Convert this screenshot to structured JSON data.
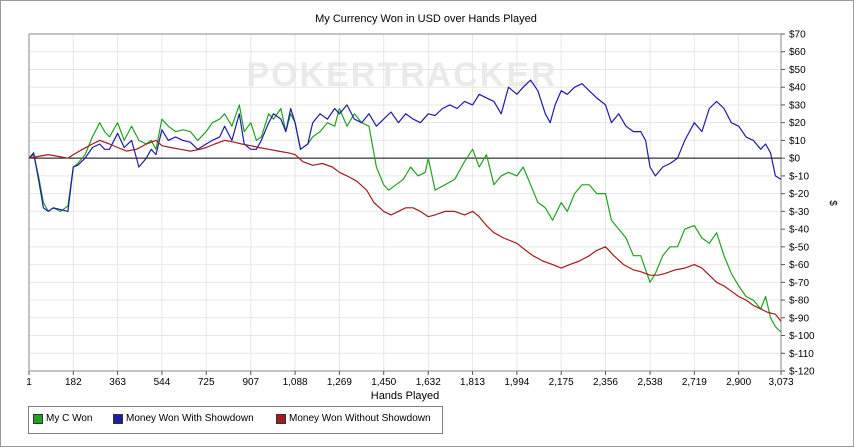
{
  "chart_data": {
    "type": "line",
    "title": "My Currency Won in USD over Hands Played",
    "xlabel": "Hands Played",
    "ylabel": "$",
    "watermark": "POKERTRACKER",
    "xlim": [
      1,
      3073
    ],
    "ylim": [
      -120,
      70
    ],
    "x_ticks": [
      "1",
      "182",
      "363",
      "544",
      "725",
      "907",
      "1,088",
      "1,269",
      "1,450",
      "1,632",
      "1,813",
      "1,994",
      "2,175",
      "2,356",
      "2,538",
      "2,719",
      "2,900",
      "3,073"
    ],
    "y_ticks": [
      "$70",
      "$60",
      "$50",
      "$40",
      "$30",
      "$20",
      "$10",
      "$0",
      "$-10",
      "$-20",
      "$-30",
      "$-40",
      "$-50",
      "$-60",
      "$-70",
      "$-80",
      "$-90",
      "$-100",
      "$-110",
      "$-120"
    ],
    "grid": true,
    "legend_position": "bottom-left",
    "series": [
      {
        "name": "My C Won",
        "color": "#21a121",
        "points": [
          [
            1,
            0
          ],
          [
            20,
            2
          ],
          [
            40,
            -10
          ],
          [
            60,
            -25
          ],
          [
            80,
            -30
          ],
          [
            100,
            -28
          ],
          [
            130,
            -30
          ],
          [
            160,
            -27
          ],
          [
            182,
            -5
          ],
          [
            200,
            -3
          ],
          [
            230,
            2
          ],
          [
            260,
            12
          ],
          [
            290,
            20
          ],
          [
            310,
            15
          ],
          [
            330,
            12
          ],
          [
            363,
            20
          ],
          [
            390,
            10
          ],
          [
            420,
            18
          ],
          [
            450,
            10
          ],
          [
            480,
            8
          ],
          [
            500,
            10
          ],
          [
            520,
            5
          ],
          [
            544,
            22
          ],
          [
            570,
            18
          ],
          [
            600,
            15
          ],
          [
            630,
            16
          ],
          [
            660,
            15
          ],
          [
            690,
            10
          ],
          [
            725,
            15
          ],
          [
            750,
            20
          ],
          [
            780,
            22
          ],
          [
            800,
            25
          ],
          [
            830,
            18
          ],
          [
            860,
            30
          ],
          [
            880,
            15
          ],
          [
            907,
            20
          ],
          [
            930,
            10
          ],
          [
            950,
            12
          ],
          [
            980,
            25
          ],
          [
            1000,
            22
          ],
          [
            1030,
            28
          ],
          [
            1050,
            15
          ],
          [
            1070,
            25
          ],
          [
            1088,
            20
          ],
          [
            1110,
            5
          ],
          [
            1140,
            8
          ],
          [
            1160,
            12
          ],
          [
            1190,
            15
          ],
          [
            1220,
            20
          ],
          [
            1250,
            18
          ],
          [
            1269,
            28
          ],
          [
            1300,
            18
          ],
          [
            1330,
            25
          ],
          [
            1360,
            20
          ],
          [
            1390,
            18
          ],
          [
            1420,
            -5
          ],
          [
            1450,
            -15
          ],
          [
            1470,
            -18
          ],
          [
            1500,
            -15
          ],
          [
            1530,
            -12
          ],
          [
            1560,
            -5
          ],
          [
            1590,
            -10
          ],
          [
            1620,
            -8
          ],
          [
            1632,
            0
          ],
          [
            1660,
            -18
          ],
          [
            1700,
            -15
          ],
          [
            1740,
            -12
          ],
          [
            1780,
            -2
          ],
          [
            1813,
            5
          ],
          [
            1840,
            -5
          ],
          [
            1870,
            2
          ],
          [
            1900,
            -15
          ],
          [
            1930,
            -10
          ],
          [
            1960,
            -8
          ],
          [
            1994,
            -10
          ],
          [
            2020,
            -5
          ],
          [
            2050,
            -15
          ],
          [
            2080,
            -25
          ],
          [
            2110,
            -28
          ],
          [
            2140,
            -35
          ],
          [
            2175,
            -25
          ],
          [
            2200,
            -30
          ],
          [
            2230,
            -20
          ],
          [
            2260,
            -15
          ],
          [
            2290,
            -15
          ],
          [
            2320,
            -20
          ],
          [
            2356,
            -20
          ],
          [
            2380,
            -35
          ],
          [
            2410,
            -40
          ],
          [
            2440,
            -45
          ],
          [
            2470,
            -55
          ],
          [
            2500,
            -55
          ],
          [
            2538,
            -70
          ],
          [
            2560,
            -65
          ],
          [
            2590,
            -55
          ],
          [
            2620,
            -50
          ],
          [
            2650,
            -50
          ],
          [
            2680,
            -40
          ],
          [
            2719,
            -38
          ],
          [
            2750,
            -45
          ],
          [
            2780,
            -48
          ],
          [
            2810,
            -42
          ],
          [
            2840,
            -55
          ],
          [
            2870,
            -65
          ],
          [
            2900,
            -72
          ],
          [
            2930,
            -78
          ],
          [
            2960,
            -80
          ],
          [
            2990,
            -85
          ],
          [
            3010,
            -78
          ],
          [
            3030,
            -90
          ],
          [
            3050,
            -95
          ],
          [
            3073,
            -98
          ]
        ]
      },
      {
        "name": "Money Won With Showdown",
        "color": "#1c1ca8",
        "points": [
          [
            1,
            0
          ],
          [
            20,
            3
          ],
          [
            40,
            -12
          ],
          [
            60,
            -28
          ],
          [
            80,
            -30
          ],
          [
            100,
            -28
          ],
          [
            130,
            -29
          ],
          [
            160,
            -30
          ],
          [
            182,
            -5
          ],
          [
            200,
            -4
          ],
          [
            230,
            0
          ],
          [
            260,
            6
          ],
          [
            290,
            8
          ],
          [
            310,
            5
          ],
          [
            330,
            5
          ],
          [
            363,
            14
          ],
          [
            390,
            6
          ],
          [
            420,
            10
          ],
          [
            450,
            -5
          ],
          [
            480,
            0
          ],
          [
            500,
            5
          ],
          [
            520,
            2
          ],
          [
            544,
            16
          ],
          [
            570,
            10
          ],
          [
            600,
            12
          ],
          [
            630,
            10
          ],
          [
            660,
            9
          ],
          [
            690,
            5
          ],
          [
            725,
            8
          ],
          [
            750,
            10
          ],
          [
            780,
            12
          ],
          [
            800,
            18
          ],
          [
            830,
            10
          ],
          [
            860,
            25
          ],
          [
            880,
            8
          ],
          [
            907,
            5
          ],
          [
            930,
            5
          ],
          [
            950,
            10
          ],
          [
            980,
            20
          ],
          [
            1000,
            25
          ],
          [
            1030,
            22
          ],
          [
            1050,
            15
          ],
          [
            1070,
            28
          ],
          [
            1088,
            20
          ],
          [
            1110,
            5
          ],
          [
            1140,
            8
          ],
          [
            1160,
            20
          ],
          [
            1190,
            25
          ],
          [
            1220,
            22
          ],
          [
            1250,
            28
          ],
          [
            1269,
            25
          ],
          [
            1300,
            30
          ],
          [
            1330,
            22
          ],
          [
            1360,
            20
          ],
          [
            1390,
            25
          ],
          [
            1420,
            18
          ],
          [
            1450,
            22
          ],
          [
            1480,
            26
          ],
          [
            1510,
            20
          ],
          [
            1540,
            25
          ],
          [
            1570,
            22
          ],
          [
            1600,
            20
          ],
          [
            1632,
            25
          ],
          [
            1660,
            24
          ],
          [
            1690,
            28
          ],
          [
            1720,
            30
          ],
          [
            1750,
            28
          ],
          [
            1780,
            32
          ],
          [
            1813,
            30
          ],
          [
            1840,
            36
          ],
          [
            1870,
            34
          ],
          [
            1900,
            32
          ],
          [
            1930,
            25
          ],
          [
            1960,
            40
          ],
          [
            1994,
            36
          ],
          [
            2020,
            40
          ],
          [
            2050,
            44
          ],
          [
            2080,
            38
          ],
          [
            2110,
            25
          ],
          [
            2130,
            20
          ],
          [
            2150,
            30
          ],
          [
            2175,
            38
          ],
          [
            2200,
            36
          ],
          [
            2230,
            40
          ],
          [
            2260,
            42
          ],
          [
            2290,
            38
          ],
          [
            2320,
            34
          ],
          [
            2356,
            30
          ],
          [
            2380,
            20
          ],
          [
            2410,
            25
          ],
          [
            2440,
            18
          ],
          [
            2470,
            15
          ],
          [
            2500,
            15
          ],
          [
            2520,
            10
          ],
          [
            2538,
            -5
          ],
          [
            2560,
            -10
          ],
          [
            2590,
            -5
          ],
          [
            2620,
            -3
          ],
          [
            2650,
            0
          ],
          [
            2680,
            10
          ],
          [
            2719,
            20
          ],
          [
            2750,
            15
          ],
          [
            2780,
            28
          ],
          [
            2810,
            32
          ],
          [
            2840,
            28
          ],
          [
            2870,
            20
          ],
          [
            2900,
            18
          ],
          [
            2930,
            12
          ],
          [
            2960,
            10
          ],
          [
            2990,
            5
          ],
          [
            3010,
            8
          ],
          [
            3030,
            3
          ],
          [
            3050,
            -10
          ],
          [
            3073,
            -12
          ]
        ]
      },
      {
        "name": "Money Won Without Showdown",
        "color": "#a31c1c",
        "points": [
          [
            1,
            0
          ],
          [
            40,
            1
          ],
          [
            80,
            2
          ],
          [
            120,
            1
          ],
          [
            160,
            0
          ],
          [
            182,
            2
          ],
          [
            220,
            5
          ],
          [
            260,
            8
          ],
          [
            290,
            10
          ],
          [
            330,
            8
          ],
          [
            363,
            6
          ],
          [
            400,
            4
          ],
          [
            440,
            5
          ],
          [
            480,
            8
          ],
          [
            520,
            10
          ],
          [
            544,
            7
          ],
          [
            580,
            6
          ],
          [
            620,
            5
          ],
          [
            660,
            4
          ],
          [
            700,
            5
          ],
          [
            725,
            6
          ],
          [
            760,
            8
          ],
          [
            800,
            10
          ],
          [
            840,
            9
          ],
          [
            870,
            8
          ],
          [
            907,
            7
          ],
          [
            940,
            6
          ],
          [
            980,
            5
          ],
          [
            1020,
            4
          ],
          [
            1060,
            3
          ],
          [
            1088,
            2
          ],
          [
            1120,
            -2
          ],
          [
            1160,
            -4
          ],
          [
            1200,
            -3
          ],
          [
            1240,
            -5
          ],
          [
            1269,
            -8
          ],
          [
            1300,
            -10
          ],
          [
            1340,
            -13
          ],
          [
            1380,
            -18
          ],
          [
            1410,
            -25
          ],
          [
            1450,
            -30
          ],
          [
            1480,
            -32
          ],
          [
            1510,
            -30
          ],
          [
            1540,
            -28
          ],
          [
            1570,
            -28
          ],
          [
            1600,
            -30
          ],
          [
            1632,
            -33
          ],
          [
            1660,
            -32
          ],
          [
            1700,
            -30
          ],
          [
            1740,
            -30
          ],
          [
            1780,
            -32
          ],
          [
            1813,
            -30
          ],
          [
            1840,
            -33
          ],
          [
            1870,
            -38
          ],
          [
            1900,
            -42
          ],
          [
            1940,
            -45
          ],
          [
            1994,
            -48
          ],
          [
            2030,
            -52
          ],
          [
            2060,
            -55
          ],
          [
            2100,
            -58
          ],
          [
            2140,
            -60
          ],
          [
            2175,
            -62
          ],
          [
            2210,
            -60
          ],
          [
            2250,
            -58
          ],
          [
            2290,
            -55
          ],
          [
            2320,
            -52
          ],
          [
            2356,
            -50
          ],
          [
            2390,
            -55
          ],
          [
            2430,
            -60
          ],
          [
            2470,
            -63
          ],
          [
            2500,
            -64
          ],
          [
            2538,
            -66
          ],
          [
            2570,
            -66
          ],
          [
            2600,
            -65
          ],
          [
            2640,
            -63
          ],
          [
            2680,
            -62
          ],
          [
            2719,
            -60
          ],
          [
            2750,
            -62
          ],
          [
            2780,
            -66
          ],
          [
            2810,
            -70
          ],
          [
            2840,
            -72
          ],
          [
            2870,
            -75
          ],
          [
            2900,
            -78
          ],
          [
            2930,
            -80
          ],
          [
            2960,
            -83
          ],
          [
            2990,
            -85
          ],
          [
            3020,
            -87
          ],
          [
            3050,
            -88
          ],
          [
            3073,
            -92
          ]
        ]
      }
    ]
  }
}
